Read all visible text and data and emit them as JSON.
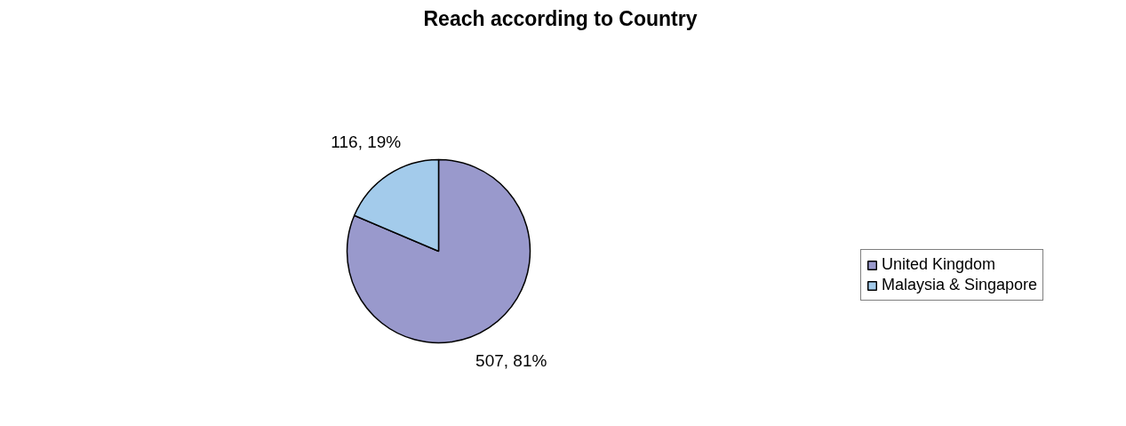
{
  "chart_data": {
    "type": "pie",
    "title": "Reach according to Country",
    "categories": [
      "United Kingdom",
      "Malaysia & Singapore"
    ],
    "values": [
      507,
      116
    ],
    "colors": [
      "#9999cc",
      "#a3cbeb"
    ],
    "value_labels": [
      "507, 81%",
      "116, 19%"
    ],
    "legend": "right"
  }
}
